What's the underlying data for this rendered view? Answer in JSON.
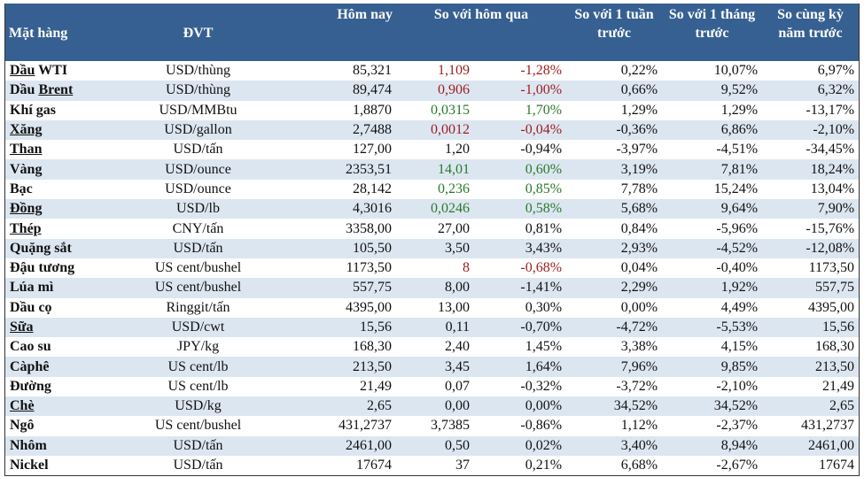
{
  "colors": {
    "header_bg": "#376092",
    "stripe": "#dce6f1",
    "negative": "#9c1c1c",
    "positive": "#2a7a2a"
  },
  "headers": {
    "item": "Mặt hàng",
    "unit": "ĐVT",
    "today": "Hôm nay",
    "vs_yesterday": "So với hôm qua",
    "vs_week": "So với 1 tuần trước",
    "vs_month": "So với 1 tháng trước",
    "vs_year": "So cùng kỳ năm trước"
  },
  "rows": [
    {
      "name": [
        "Dầu",
        " WTI"
      ],
      "underline": [
        0
      ],
      "unit": "USD/thùng",
      "today": "85,321",
      "chg": "1,109",
      "pct": "-1,28%",
      "color": "red",
      "week": "0,22%",
      "month": "10,07%",
      "year": "6,97%"
    },
    {
      "name": [
        "Dầu ",
        "Brent"
      ],
      "underline": [
        1
      ],
      "unit": "USD/thùng",
      "today": "89,474",
      "chg": "0,906",
      "pct": "-1,00%",
      "color": "red",
      "week": "0,66%",
      "month": "9,52%",
      "year": "6,32%"
    },
    {
      "name": [
        "Khí gas"
      ],
      "underline": [],
      "unit": "USD/MMBtu",
      "today": "1,8870",
      "chg": "0,0315",
      "pct": "1,70%",
      "color": "green",
      "week": "1,29%",
      "month": "1,29%",
      "year": "-13,17%"
    },
    {
      "name": [
        "Xăng"
      ],
      "underline": [
        0
      ],
      "unit": "USD/gallon",
      "today": "2,7488",
      "chg": "0,0012",
      "pct": "-0,04%",
      "color": "red",
      "week": "-0,36%",
      "month": "6,86%",
      "year": "-2,10%"
    },
    {
      "name": [
        "Than"
      ],
      "underline": [
        0
      ],
      "unit": "USD/tấn",
      "today": "127,00",
      "chg": "1,20",
      "pct": "-0,94%",
      "color": "",
      "week": "-3,97%",
      "month": "-4,51%",
      "year": "-34,45%"
    },
    {
      "name": [
        "Vàng"
      ],
      "underline": [],
      "unit": "USD/ounce",
      "today": "2353,51",
      "chg": "14,01",
      "pct": "0,60%",
      "color": "green",
      "week": "3,19%",
      "month": "7,81%",
      "year": "18,24%"
    },
    {
      "name": [
        "Bạc"
      ],
      "underline": [],
      "unit": "USD/ounce",
      "today": "28,142",
      "chg": "0,236",
      "pct": "0,85%",
      "color": "green",
      "week": "7,78%",
      "month": "15,24%",
      "year": "13,04%"
    },
    {
      "name": [
        "Đồng"
      ],
      "underline": [
        0
      ],
      "unit": "USD/lb",
      "today": "4,3016",
      "chg": "0,0246",
      "pct": "0,58%",
      "color": "green",
      "week": "5,68%",
      "month": "9,64%",
      "year": "7,90%"
    },
    {
      "name": [
        "Thép"
      ],
      "underline": [
        0
      ],
      "unit": "CNY/tấn",
      "today": "3358,00",
      "chg": "27,00",
      "pct": "0,81%",
      "color": "",
      "week": "0,84%",
      "month": "-5,96%",
      "year": "-15,76%"
    },
    {
      "name": [
        "Quặng sắt"
      ],
      "underline": [],
      "unit": "USD/tấn",
      "today": "105,50",
      "chg": "3,50",
      "pct": "3,43%",
      "color": "",
      "week": "2,93%",
      "month": "-4,52%",
      "year": "-12,08%"
    },
    {
      "name": [
        "Đậu tương"
      ],
      "underline": [],
      "unit": "US cent/bushel",
      "today": "1173,50",
      "chg": "8",
      "pct": "-0,68%",
      "color": "red",
      "week": "0,04%",
      "month": "-0,40%",
      "year": "1173,50"
    },
    {
      "name": [
        "Lúa mì"
      ],
      "underline": [],
      "unit": "US cent/bushel",
      "today": "557,75",
      "chg": "8,00",
      "pct": "-1,41%",
      "color": "",
      "week": "2,29%",
      "month": "1,92%",
      "year": "557,75"
    },
    {
      "name": [
        "Dầu cọ"
      ],
      "underline": [],
      "unit": "Ringgit/tấn",
      "today": "4395,00",
      "chg": "13,00",
      "pct": "0,30%",
      "color": "",
      "week": "0,00%",
      "month": "4,49%",
      "year": "4395,00"
    },
    {
      "name": [
        "Sữa"
      ],
      "underline": [
        0
      ],
      "unit": "USD/cwt",
      "today": "15,56",
      "chg": "0,11",
      "pct": "-0,70%",
      "color": "",
      "week": "-4,72%",
      "month": "-5,53%",
      "year": "15,56"
    },
    {
      "name": [
        "Cao su"
      ],
      "underline": [],
      "unit": "JPY/kg",
      "today": "168,30",
      "chg": "2,40",
      "pct": "1,45%",
      "color": "",
      "week": "3,38%",
      "month": "4,15%",
      "year": "168,30"
    },
    {
      "name": [
        "Càphê"
      ],
      "underline": [],
      "unit": "US cent/lb",
      "today": "213,50",
      "chg": "3,45",
      "pct": "1,64%",
      "color": "",
      "week": "7,96%",
      "month": "9,85%",
      "year": "213,50"
    },
    {
      "name": [
        "Đường"
      ],
      "underline": [],
      "unit": "US cent/lb",
      "today": "21,49",
      "chg": "0,07",
      "pct": "-0,32%",
      "color": "",
      "week": "-3,72%",
      "month": "-2,10%",
      "year": "21,49"
    },
    {
      "name": [
        "Chè"
      ],
      "underline": [
        0
      ],
      "unit": "USD/kg",
      "today": "2,65",
      "chg": "0,00",
      "pct": "0,00%",
      "color": "",
      "week": "34,52%",
      "month": "34,52%",
      "year": "2,65"
    },
    {
      "name": [
        "Ngô"
      ],
      "underline": [],
      "unit": "US cent/bushel",
      "today": "431,2737",
      "chg": "3,7385",
      "pct": "-0,86%",
      "color": "",
      "week": "1,12%",
      "month": "-2,37%",
      "year": "431,2737"
    },
    {
      "name": [
        "Nhôm"
      ],
      "underline": [],
      "unit": "USD/tấn",
      "today": "2461,00",
      "chg": "0,50",
      "pct": "0,02%",
      "color": "",
      "week": "3,40%",
      "month": "8,94%",
      "year": "2461,00"
    },
    {
      "name": [
        "Nickel"
      ],
      "underline": [],
      "unit": "USD/tấn",
      "today": "17674",
      "chg": "37",
      "pct": "0,21%",
      "color": "",
      "week": "6,68%",
      "month": "-2,67%",
      "year": "17674"
    }
  ]
}
